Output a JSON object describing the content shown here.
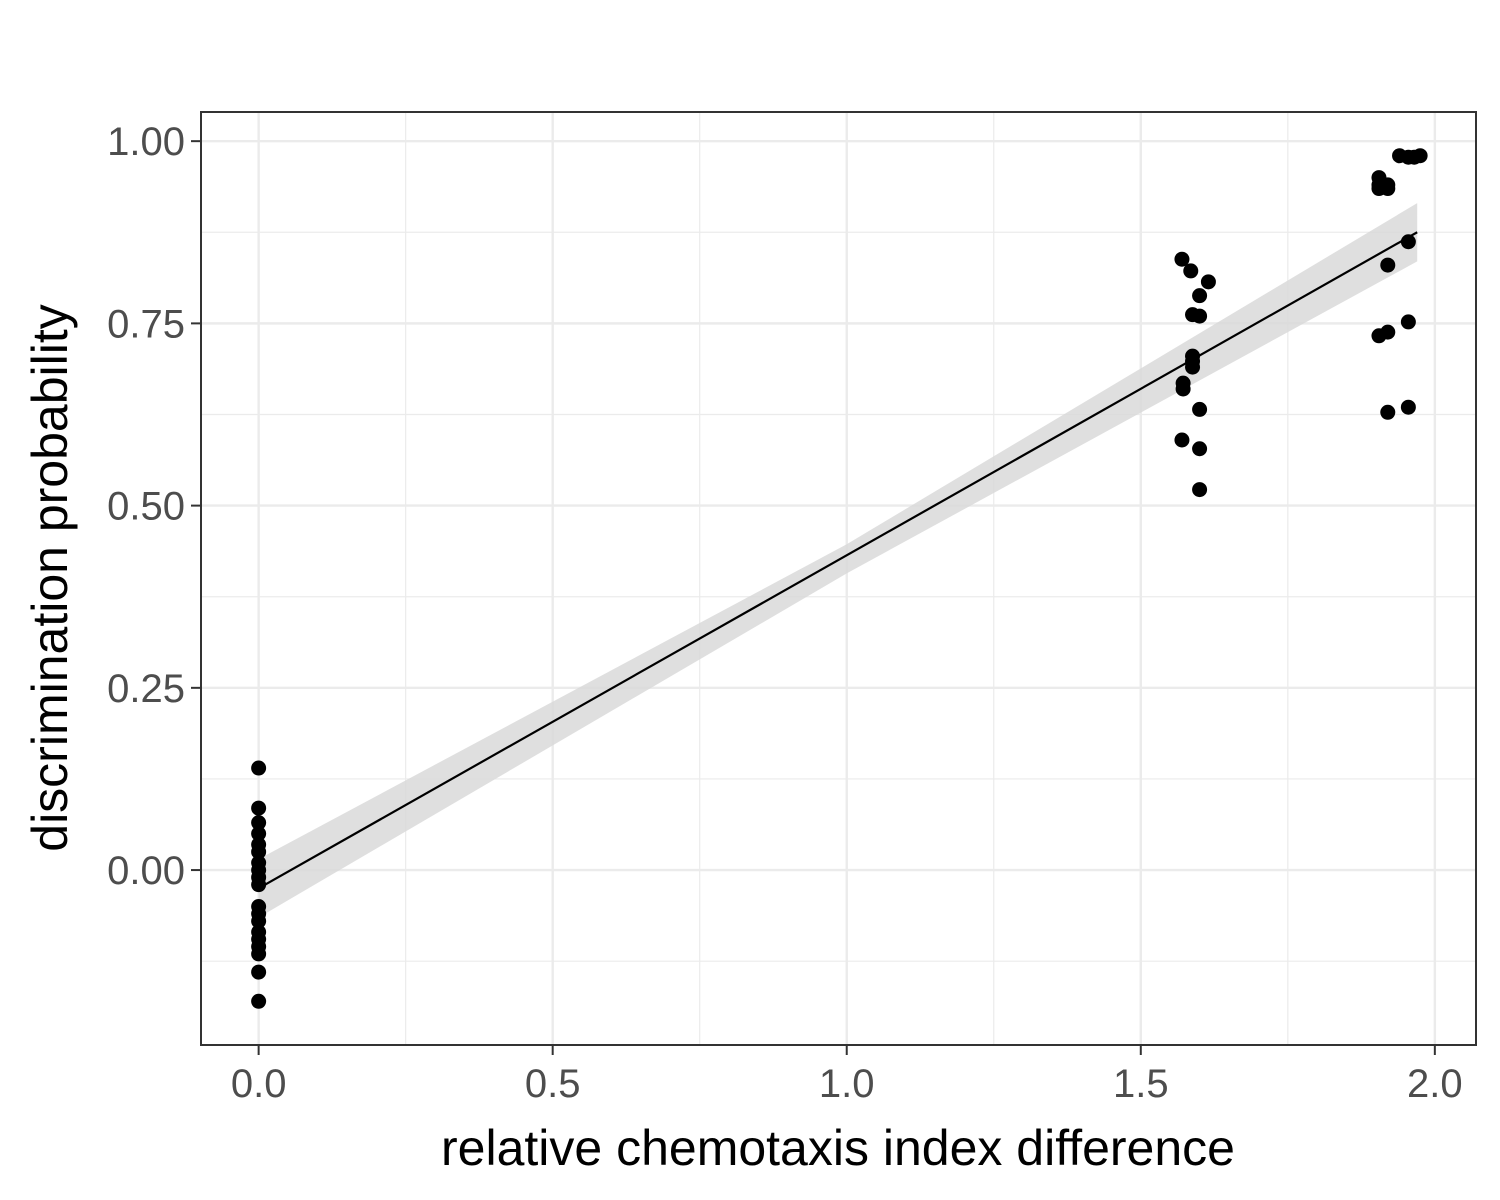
{
  "chart_data": {
    "type": "scatter",
    "title": "",
    "xlabel": "relative chemotaxis index difference",
    "ylabel": "discrimination probability",
    "xlim": [
      -0.098,
      2.07
    ],
    "ylim": [
      -0.24,
      1.04
    ],
    "x_ticks": [
      {
        "value": 0.0,
        "label": "0.0"
      },
      {
        "value": 0.5,
        "label": "0.5"
      },
      {
        "value": 1.0,
        "label": "1.0"
      },
      {
        "value": 1.5,
        "label": "1.5"
      },
      {
        "value": 2.0,
        "label": "2.0"
      }
    ],
    "y_ticks": [
      {
        "value": 0.0,
        "label": "0.00"
      },
      {
        "value": 0.25,
        "label": "0.25"
      },
      {
        "value": 0.5,
        "label": "0.50"
      },
      {
        "value": 0.75,
        "label": "0.75"
      },
      {
        "value": 1.0,
        "label": "1.00"
      }
    ],
    "x_minor_grid": [
      0.25,
      0.75,
      1.25,
      1.75
    ],
    "y_minor_grid": [
      -0.125,
      0.125,
      0.375,
      0.625,
      0.875
    ],
    "grid": true,
    "legend": "none",
    "colors": {
      "points": "#000000",
      "fit_line": "#000000",
      "band": "#d9d9d9",
      "grid": "#ebebeb",
      "border": "#333333"
    },
    "points": [
      {
        "x": 0.0,
        "y": 0.14
      },
      {
        "x": 0.0,
        "y": 0.085
      },
      {
        "x": 0.0,
        "y": 0.065
      },
      {
        "x": 0.0,
        "y": 0.05
      },
      {
        "x": 0.0,
        "y": 0.035
      },
      {
        "x": 0.0,
        "y": 0.025
      },
      {
        "x": 0.0,
        "y": 0.01
      },
      {
        "x": 0.0,
        "y": 0.0
      },
      {
        "x": 0.0,
        "y": -0.01
      },
      {
        "x": 0.0,
        "y": -0.02
      },
      {
        "x": 0.0,
        "y": -0.05
      },
      {
        "x": 0.0,
        "y": -0.06
      },
      {
        "x": 0.0,
        "y": -0.07
      },
      {
        "x": 0.0,
        "y": -0.085
      },
      {
        "x": 0.0,
        "y": -0.095
      },
      {
        "x": 0.0,
        "y": -0.105
      },
      {
        "x": 0.0,
        "y": -0.115
      },
      {
        "x": 0.0,
        "y": -0.14
      },
      {
        "x": 0.0,
        "y": -0.18
      },
      {
        "x": 1.57,
        "y": 0.838
      },
      {
        "x": 1.585,
        "y": 0.822
      },
      {
        "x": 1.615,
        "y": 0.807
      },
      {
        "x": 1.6,
        "y": 0.788
      },
      {
        "x": 1.588,
        "y": 0.762
      },
      {
        "x": 1.6,
        "y": 0.76
      },
      {
        "x": 1.588,
        "y": 0.705
      },
      {
        "x": 1.588,
        "y": 0.698
      },
      {
        "x": 1.588,
        "y": 0.69
      },
      {
        "x": 1.572,
        "y": 0.668
      },
      {
        "x": 1.572,
        "y": 0.66
      },
      {
        "x": 1.6,
        "y": 0.632
      },
      {
        "x": 1.57,
        "y": 0.59
      },
      {
        "x": 1.6,
        "y": 0.578
      },
      {
        "x": 1.6,
        "y": 0.522
      },
      {
        "x": 1.905,
        "y": 0.95
      },
      {
        "x": 1.905,
        "y": 0.94
      },
      {
        "x": 1.905,
        "y": 0.935
      },
      {
        "x": 1.92,
        "y": 0.94
      },
      {
        "x": 1.92,
        "y": 0.935
      },
      {
        "x": 1.94,
        "y": 0.98
      },
      {
        "x": 1.955,
        "y": 0.978
      },
      {
        "x": 1.965,
        "y": 0.978
      },
      {
        "x": 1.975,
        "y": 0.98
      },
      {
        "x": 1.955,
        "y": 0.862
      },
      {
        "x": 1.92,
        "y": 0.83
      },
      {
        "x": 1.955,
        "y": 0.752
      },
      {
        "x": 1.92,
        "y": 0.738
      },
      {
        "x": 1.905,
        "y": 0.733
      },
      {
        "x": 1.955,
        "y": 0.635
      },
      {
        "x": 1.92,
        "y": 0.628
      }
    ],
    "fit_line": {
      "x": [
        0.0,
        1.97
      ],
      "y": [
        -0.025,
        0.875
      ]
    },
    "confidence_band": {
      "x": [
        0.0,
        1.0,
        1.97
      ],
      "upper": [
        0.015,
        0.447,
        0.915
      ],
      "lower": [
        -0.065,
        0.407,
        0.835
      ]
    }
  }
}
